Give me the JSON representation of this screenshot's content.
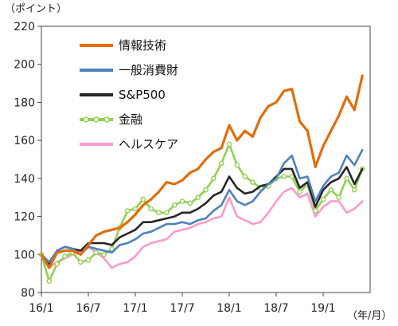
{
  "chart_data": {
    "type": "line",
    "y_unit_label": "（ポイント）",
    "x_unit_label": "（年/月）",
    "ylim": [
      80,
      220
    ],
    "yticks": [
      80,
      100,
      120,
      140,
      160,
      180,
      200,
      220
    ],
    "xlim": [
      "2016-01",
      "2019-07"
    ],
    "xticks": [
      {
        "x": "2016-01",
        "label": "16/1"
      },
      {
        "x": "2016-07",
        "label": "16/7"
      },
      {
        "x": "2017-01",
        "label": "17/1"
      },
      {
        "x": "2017-07",
        "label": "17/7"
      },
      {
        "x": "2018-01",
        "label": "18/1"
      },
      {
        "x": "2018-07",
        "label": "18/7"
      },
      {
        "x": "2019-01",
        "label": "19/1"
      }
    ],
    "grid": false,
    "legend_position": "top-left",
    "series": [
      {
        "name": "情報技術",
        "color": "#e46c0a",
        "marker": "none",
        "points": [
          [
            "2016-01",
            100
          ],
          [
            "2016-02",
            93
          ],
          [
            "2016-03",
            101
          ],
          [
            "2016-04",
            102
          ],
          [
            "2016-05",
            102
          ],
          [
            "2016-06",
            100
          ],
          [
            "2016-07",
            105
          ],
          [
            "2016-08",
            110
          ],
          [
            "2016-09",
            112
          ],
          [
            "2016-10",
            113
          ],
          [
            "2016-11",
            114
          ],
          [
            "2016-12",
            117
          ],
          [
            "2017-01",
            121
          ],
          [
            "2017-02",
            126
          ],
          [
            "2017-03",
            129
          ],
          [
            "2017-04",
            133
          ],
          [
            "2017-05",
            138
          ],
          [
            "2017-06",
            137
          ],
          [
            "2017-07",
            139
          ],
          [
            "2017-08",
            143
          ],
          [
            "2017-09",
            145
          ],
          [
            "2017-10",
            150
          ],
          [
            "2017-11",
            154
          ],
          [
            "2017-12",
            156
          ],
          [
            "2018-01",
            168
          ],
          [
            "2018-02",
            160
          ],
          [
            "2018-03",
            165
          ],
          [
            "2018-04",
            162
          ],
          [
            "2018-05",
            172
          ],
          [
            "2018-06",
            178
          ],
          [
            "2018-07",
            180
          ],
          [
            "2018-08",
            186
          ],
          [
            "2018-09",
            187
          ],
          [
            "2018-10",
            170
          ],
          [
            "2018-11",
            165
          ],
          [
            "2018-12",
            146
          ],
          [
            "2019-01",
            157
          ],
          [
            "2019-02",
            165
          ],
          [
            "2019-03",
            173
          ],
          [
            "2019-04",
            183
          ],
          [
            "2019-05",
            176
          ],
          [
            "2019-06",
            194
          ]
        ]
      },
      {
        "name": "一般消費財",
        "color": "#4f81bd",
        "marker": "none",
        "points": [
          [
            "2016-01",
            100
          ],
          [
            "2016-02",
            96
          ],
          [
            "2016-03",
            102
          ],
          [
            "2016-04",
            104
          ],
          [
            "2016-05",
            103
          ],
          [
            "2016-06",
            100
          ],
          [
            "2016-07",
            104
          ],
          [
            "2016-08",
            103
          ],
          [
            "2016-09",
            102
          ],
          [
            "2016-10",
            101
          ],
          [
            "2016-11",
            105
          ],
          [
            "2016-12",
            106
          ],
          [
            "2017-01",
            108
          ],
          [
            "2017-02",
            111
          ],
          [
            "2017-03",
            112
          ],
          [
            "2017-04",
            114
          ],
          [
            "2017-05",
            116
          ],
          [
            "2017-06",
            116
          ],
          [
            "2017-07",
            117
          ],
          [
            "2017-08",
            116
          ],
          [
            "2017-09",
            118
          ],
          [
            "2017-10",
            119
          ],
          [
            "2017-11",
            123
          ],
          [
            "2017-12",
            126
          ],
          [
            "2018-01",
            134
          ],
          [
            "2018-02",
            128
          ],
          [
            "2018-03",
            126
          ],
          [
            "2018-04",
            128
          ],
          [
            "2018-05",
            133
          ],
          [
            "2018-06",
            137
          ],
          [
            "2018-07",
            140
          ],
          [
            "2018-08",
            148
          ],
          [
            "2018-09",
            152
          ],
          [
            "2018-10",
            140
          ],
          [
            "2018-11",
            141
          ],
          [
            "2018-12",
            128
          ],
          [
            "2019-01",
            136
          ],
          [
            "2019-02",
            141
          ],
          [
            "2019-03",
            143
          ],
          [
            "2019-04",
            152
          ],
          [
            "2019-05",
            147
          ],
          [
            "2019-06",
            155
          ]
        ]
      },
      {
        "name": "S&P500",
        "color": "#262626",
        "marker": "none",
        "points": [
          [
            "2016-01",
            100
          ],
          [
            "2016-02",
            95
          ],
          [
            "2016-03",
            102
          ],
          [
            "2016-04",
            104
          ],
          [
            "2016-05",
            103
          ],
          [
            "2016-06",
            102
          ],
          [
            "2016-07",
            106
          ],
          [
            "2016-08",
            106
          ],
          [
            "2016-09",
            106
          ],
          [
            "2016-10",
            105
          ],
          [
            "2016-11",
            109
          ],
          [
            "2016-12",
            111
          ],
          [
            "2017-01",
            113
          ],
          [
            "2017-02",
            117
          ],
          [
            "2017-03",
            117
          ],
          [
            "2017-04",
            118
          ],
          [
            "2017-05",
            119
          ],
          [
            "2017-06",
            120
          ],
          [
            "2017-07",
            122
          ],
          [
            "2017-08",
            122
          ],
          [
            "2017-09",
            124
          ],
          [
            "2017-10",
            127
          ],
          [
            "2017-11",
            131
          ],
          [
            "2017-12",
            133
          ],
          [
            "2018-01",
            141
          ],
          [
            "2018-02",
            135
          ],
          [
            "2018-03",
            132
          ],
          [
            "2018-04",
            133
          ],
          [
            "2018-05",
            136
          ],
          [
            "2018-06",
            137
          ],
          [
            "2018-07",
            141
          ],
          [
            "2018-08",
            145
          ],
          [
            "2018-09",
            145
          ],
          [
            "2018-10",
            135
          ],
          [
            "2018-11",
            138
          ],
          [
            "2018-12",
            125
          ],
          [
            "2019-01",
            134
          ],
          [
            "2019-02",
            138
          ],
          [
            "2019-03",
            140
          ],
          [
            "2019-04",
            146
          ],
          [
            "2019-05",
            137
          ],
          [
            "2019-06",
            145
          ]
        ]
      },
      {
        "name": "金融",
        "color": "#92d050",
        "marker": "circle",
        "points": [
          [
            "2016-01",
            100
          ],
          [
            "2016-02",
            86
          ],
          [
            "2016-03",
            95
          ],
          [
            "2016-04",
            99
          ],
          [
            "2016-05",
            101
          ],
          [
            "2016-06",
            96
          ],
          [
            "2016-07",
            97
          ],
          [
            "2016-08",
            101
          ],
          [
            "2016-09",
            100
          ],
          [
            "2016-10",
            103
          ],
          [
            "2016-11",
            114
          ],
          [
            "2016-12",
            123
          ],
          [
            "2017-01",
            124
          ],
          [
            "2017-02",
            129
          ],
          [
            "2017-03",
            124
          ],
          [
            "2017-04",
            122
          ],
          [
            "2017-05",
            122
          ],
          [
            "2017-06",
            126
          ],
          [
            "2017-07",
            128
          ],
          [
            "2017-08",
            127
          ],
          [
            "2017-09",
            130
          ],
          [
            "2017-10",
            134
          ],
          [
            "2017-11",
            140
          ],
          [
            "2017-12",
            148
          ],
          [
            "2018-01",
            158
          ],
          [
            "2018-02",
            147
          ],
          [
            "2018-03",
            141
          ],
          [
            "2018-04",
            138
          ],
          [
            "2018-05",
            135
          ],
          [
            "2018-06",
            136
          ],
          [
            "2018-07",
            140
          ],
          [
            "2018-08",
            141
          ],
          [
            "2018-09",
            141
          ],
          [
            "2018-10",
            133
          ],
          [
            "2018-11",
            137
          ],
          [
            "2018-12",
            123
          ],
          [
            "2019-01",
            129
          ],
          [
            "2019-02",
            134
          ],
          [
            "2019-03",
            130
          ],
          [
            "2019-04",
            140
          ],
          [
            "2019-05",
            134
          ],
          [
            "2019-06",
            145
          ]
        ]
      },
      {
        "name": "ヘルスケア",
        "color": "#ff99cc",
        "marker": "none",
        "points": [
          [
            "2016-01",
            100
          ],
          [
            "2016-02",
            93
          ],
          [
            "2016-03",
            96
          ],
          [
            "2016-04",
            98
          ],
          [
            "2016-05",
            100
          ],
          [
            "2016-06",
            102
          ],
          [
            "2016-07",
            104
          ],
          [
            "2016-08",
            101
          ],
          [
            "2016-09",
            98
          ],
          [
            "2016-10",
            93
          ],
          [
            "2016-11",
            95
          ],
          [
            "2016-12",
            96
          ],
          [
            "2017-01",
            99
          ],
          [
            "2017-02",
            104
          ],
          [
            "2017-03",
            106
          ],
          [
            "2017-04",
            107
          ],
          [
            "2017-05",
            108
          ],
          [
            "2017-06",
            112
          ],
          [
            "2017-07",
            113
          ],
          [
            "2017-08",
            114
          ],
          [
            "2017-09",
            116
          ],
          [
            "2017-10",
            117
          ],
          [
            "2017-11",
            119
          ],
          [
            "2017-12",
            120
          ],
          [
            "2018-01",
            130
          ],
          [
            "2018-02",
            120
          ],
          [
            "2018-03",
            118
          ],
          [
            "2018-04",
            116
          ],
          [
            "2018-05",
            117
          ],
          [
            "2018-06",
            122
          ],
          [
            "2018-07",
            128
          ],
          [
            "2018-08",
            133
          ],
          [
            "2018-09",
            135
          ],
          [
            "2018-10",
            130
          ],
          [
            "2018-11",
            132
          ],
          [
            "2018-12",
            120
          ],
          [
            "2019-01",
            125
          ],
          [
            "2019-02",
            128
          ],
          [
            "2019-03",
            128
          ],
          [
            "2019-04",
            122
          ],
          [
            "2019-05",
            124
          ],
          [
            "2019-06",
            128
          ]
        ]
      }
    ]
  }
}
